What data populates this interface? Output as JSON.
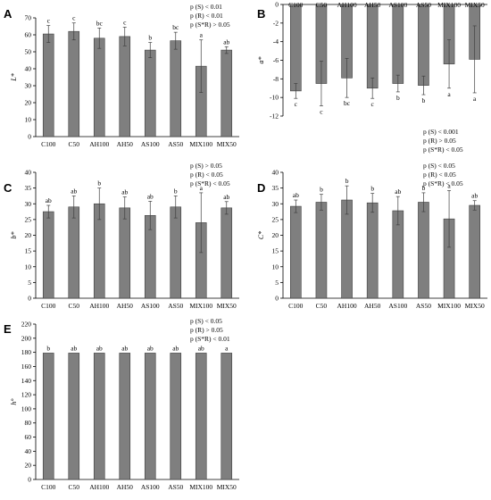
{
  "colors": {
    "bar": "#7f7f7f",
    "bar_edge": "#3f3f3f",
    "axis": "#000000",
    "error": "#3f3f3f"
  },
  "chart_data": [
    {
      "panel": "A",
      "type": "bar",
      "ylabel": "L*",
      "ylim": [
        0,
        70
      ],
      "yticks": [
        0,
        10,
        20,
        30,
        40,
        50,
        60,
        70
      ],
      "categories": [
        "C100",
        "C50",
        "AH100",
        "AH50",
        "AS100",
        "AS50",
        "MIX100",
        "MIX50"
      ],
      "values": [
        60.5,
        62,
        58,
        59,
        51,
        56.5,
        41.5,
        51
      ],
      "errors": [
        5,
        5,
        6,
        5.5,
        4.5,
        5,
        15.5,
        2
      ],
      "letters": [
        "c",
        "c",
        "bc",
        "c",
        "b",
        "bc",
        "a",
        "ab"
      ],
      "stats": [
        "p (S) < 0.01",
        "p (R) < 0.01",
        "p (S*R) > 0.05"
      ]
    },
    {
      "panel": "B",
      "type": "bar",
      "ylabel": "a*",
      "ylim": [
        -12,
        0
      ],
      "yticks": [
        0,
        -2,
        -4,
        -6,
        -8,
        -10,
        -12
      ],
      "categories": [
        "C100",
        "C50",
        "AH100",
        "AH50",
        "AS100",
        "AS50",
        "MIX100",
        "MIX50"
      ],
      "values": [
        -9.3,
        -8.5,
        -7.9,
        -9,
        -8.5,
        -8.7,
        -6.4,
        -5.9
      ],
      "errors": [
        0.8,
        2.4,
        2.1,
        1.1,
        0.9,
        1.0,
        2.6,
        3.6
      ],
      "letters": [
        "c",
        "c",
        "bc",
        "c",
        "b",
        "b",
        "a",
        "a"
      ],
      "stats": [
        "p (S) < 0.001",
        "p (R) > 0.05",
        "p (S*R) < 0.05"
      ]
    },
    {
      "panel": "C",
      "type": "bar",
      "ylabel": "b*",
      "ylim": [
        0,
        40
      ],
      "yticks": [
        0,
        5,
        10,
        15,
        20,
        25,
        30,
        35,
        40
      ],
      "categories": [
        "C100",
        "C50",
        "AH100",
        "AH50",
        "AS100",
        "AS50",
        "MIX100",
        "MIX50"
      ],
      "values": [
        27.5,
        29,
        30,
        28.7,
        26.3,
        29,
        24,
        28.7
      ],
      "errors": [
        2,
        3.5,
        5,
        3.5,
        4.5,
        3.5,
        9.5,
        2
      ],
      "letters": [
        "ab",
        "ab",
        "b",
        "ab",
        "ab",
        "b",
        "a",
        "ab"
      ],
      "stats": [
        "p (S) > 0.05",
        "p (R) < 0.05",
        "p (S*R) < 0.05"
      ]
    },
    {
      "panel": "D",
      "type": "bar",
      "ylabel": "C*",
      "ylim": [
        0,
        40
      ],
      "yticks": [
        0,
        5,
        10,
        15,
        20,
        25,
        30,
        35,
        40
      ],
      "categories": [
        "C100",
        "C50",
        "AH100",
        "AH50",
        "AS100",
        "AS50",
        "MIX100",
        "MIX50"
      ],
      "values": [
        29.2,
        30.5,
        31.2,
        30.3,
        27.8,
        30.5,
        25.2,
        29.5
      ],
      "errors": [
        2,
        2.5,
        4.5,
        3,
        4.5,
        3,
        9,
        1.5
      ],
      "letters": [
        "ab",
        "b",
        "b",
        "b",
        "ab",
        "b",
        "a",
        "ab"
      ],
      "stats": [
        "p (S) < 0.05",
        "p (R) < 0.05",
        "p (S*R) < 0.05"
      ]
    },
    {
      "panel": "E",
      "type": "bar",
      "ylabel": "h°",
      "ylim": [
        0,
        220
      ],
      "yticks": [
        0,
        20,
        40,
        60,
        80,
        100,
        120,
        140,
        160,
        180,
        200,
        220
      ],
      "categories": [
        "C100",
        "C50",
        "AH100",
        "AH50",
        "AS100",
        "AS50",
        "MIX100",
        "MIX50"
      ],
      "values": [
        179,
        179,
        179,
        179,
        179,
        179,
        179,
        179
      ],
      "errors": [
        0,
        0,
        0,
        0,
        0,
        0,
        0,
        0
      ],
      "letters": [
        "b",
        "ab",
        "ab",
        "ab",
        "ab",
        "ab",
        "ab",
        "a"
      ],
      "stats": [
        "p (S) < 0.05",
        "p (R) > 0.05",
        "p (S*R) < 0.01"
      ]
    }
  ]
}
